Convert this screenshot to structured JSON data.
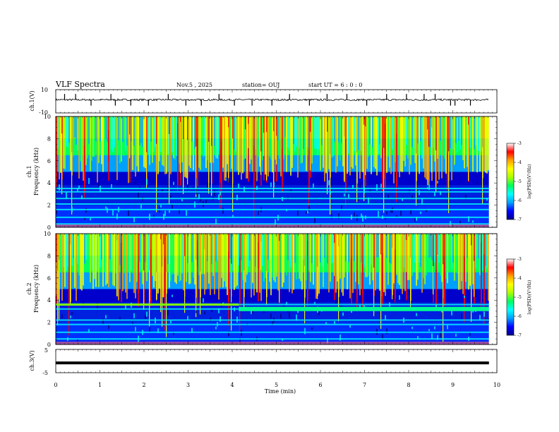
{
  "header": {
    "title": "VLF Spectra",
    "date": "Nov.5 , 2025",
    "station": "station= OUJ",
    "start": "start UT = 6 : 0 : 0"
  },
  "time_axis": {
    "label": "Time (min)",
    "range": [
      0,
      10
    ],
    "ticks": [
      "0",
      "1",
      "2",
      "3",
      "4",
      "5",
      "6",
      "7",
      "8",
      "9",
      "10"
    ],
    "data_end": 9.82
  },
  "ch1_waveform": {
    "label": "ch.1(V)",
    "range": [
      -10,
      10
    ],
    "ticks": [
      "10",
      "-10"
    ],
    "baseline": 1.3,
    "spike_times": [
      0.2,
      0.45,
      0.8,
      1.25,
      1.35,
      1.7,
      2.1,
      2.55,
      2.95,
      3.3,
      3.7,
      4.05,
      4.45,
      4.9,
      5.3,
      5.75,
      6.15,
      6.6,
      7.05,
      7.5,
      7.95,
      8.35,
      8.6,
      8.95,
      9.05,
      9.4
    ]
  },
  "ch1_spectrogram": {
    "label": "ch.1",
    "axis_label": "Frequency (kHz)",
    "range": [
      0,
      10
    ],
    "ticks": [
      "0",
      "2",
      "4",
      "6",
      "8",
      "10"
    ]
  },
  "ch2_spectrogram": {
    "label": "ch.2",
    "axis_label": "Frequency (kHz)",
    "range": [
      0,
      10
    ],
    "ticks": [
      "0",
      "2",
      "4",
      "6",
      "8",
      "10"
    ],
    "band_shift": {
      "time": 4.15,
      "before_khz": 3.6,
      "after_khz": 3.2
    }
  },
  "ch3_waveform": {
    "label": "ch.3(V)",
    "range": [
      -5,
      5
    ],
    "ticks": [
      "5",
      "-5"
    ],
    "level": -0.8
  },
  "colorbar": {
    "label": "log(PSD)(V²/Hz)",
    "range": [
      -7,
      -3
    ],
    "ticks": [
      "-3",
      "-4",
      "-5",
      "-6",
      "-7"
    ],
    "colors": [
      "#00008b",
      "#0000ff",
      "#00a0ff",
      "#00ffff",
      "#00ff60",
      "#aaff00",
      "#ffff00",
      "#ffa000",
      "#ff0000",
      "#ffffff"
    ]
  },
  "chart_data": {
    "type": "heatmap",
    "title": "VLF Spectra",
    "xlabel": "Time (min)",
    "ylabel": "Frequency (kHz)",
    "xlim": [
      0,
      10
    ],
    "ylim": [
      0,
      10
    ],
    "zlim": [
      -7,
      -3
    ],
    "series": [
      {
        "name": "ch.1",
        "strong_horizontal_bands_khz": [
          0.3,
          0.9,
          1.6,
          2.1,
          2.6,
          3.2,
          3.5
        ]
      },
      {
        "name": "ch.2",
        "strong_horizontal_bands_khz": [
          0.5,
          1.1,
          1.8,
          2.2,
          3.2,
          3.6
        ]
      }
    ]
  }
}
